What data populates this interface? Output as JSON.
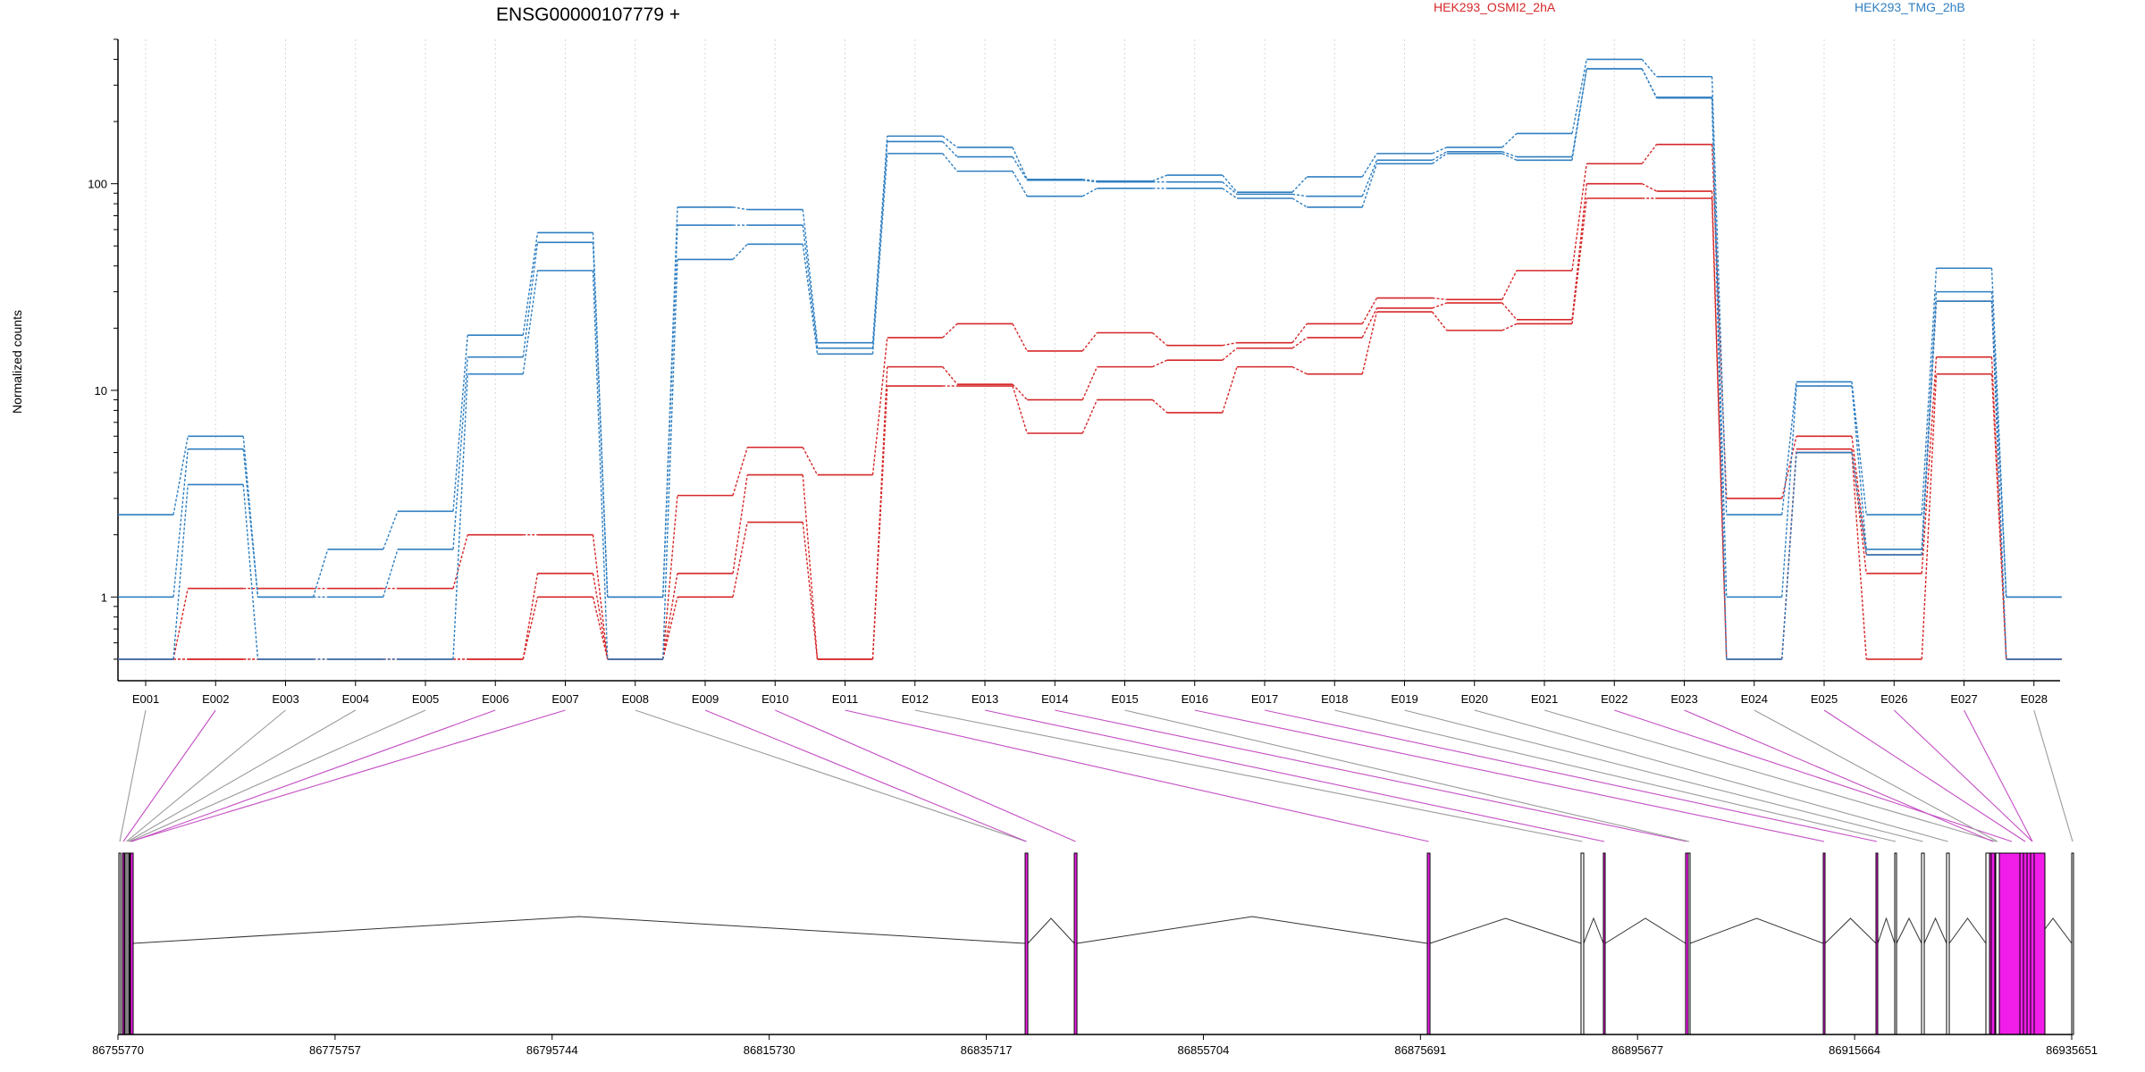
{
  "chart_data": {
    "type": "line",
    "title": "ENSG00000107779 +",
    "ylabel": "Normalized counts",
    "y_scale": "log",
    "ylim": [
      0.48,
      500
    ],
    "y_ticks": [
      1,
      10,
      100
    ],
    "y_tick_labels": [
      "1",
      "10",
      "100"
    ],
    "categories": [
      "E001",
      "E002",
      "E003",
      "E004",
      "E005",
      "E006",
      "E007",
      "E008",
      "E009",
      "E010",
      "E011",
      "E012",
      "E013",
      "E014",
      "E015",
      "E016",
      "E017",
      "E018",
      "E019",
      "E020",
      "E021",
      "E022",
      "E023",
      "E024",
      "E025",
      "E026",
      "E027",
      "E028"
    ],
    "grid": "vertical dotted at each exon",
    "legend": [
      {
        "name": "HEK293_OSMI2_2hA",
        "color": "#d62728"
      },
      {
        "name": "HEK293_TMG_2hB",
        "color": "#2f7fc1"
      }
    ],
    "series": [
      {
        "group": "HEK293_OSMI2_2hA",
        "color": "#d62728",
        "values": [
          0.5,
          0.5,
          0.5,
          0.5,
          0.5,
          0.5,
          1.0,
          0.5,
          1.0,
          2.3,
          0.5,
          10.5,
          10.5,
          6.2,
          9.0,
          7.8,
          13.0,
          12.0,
          24.0,
          19.5,
          21.0,
          85,
          85,
          0.5,
          5.0,
          0.5,
          12.0,
          0.5
        ]
      },
      {
        "group": "HEK293_OSMI2_2hA",
        "color": "#d62728",
        "values": [
          0.5,
          0.5,
          0.5,
          0.5,
          0.5,
          0.5,
          1.3,
          0.5,
          1.3,
          3.9,
          0.5,
          13.0,
          10.7,
          9.0,
          13.0,
          14.0,
          16.0,
          18.0,
          25.0,
          26.5,
          22.0,
          100,
          92,
          0.5,
          5.2,
          1.3,
          14.5,
          0.5
        ]
      },
      {
        "group": "HEK293_OSMI2_2hA",
        "color": "#d62728",
        "values": [
          0.5,
          1.1,
          1.1,
          1.1,
          1.1,
          2.0,
          2.0,
          0.5,
          3.1,
          5.3,
          3.9,
          18.0,
          21.0,
          15.5,
          19.0,
          16.5,
          17.0,
          21.0,
          28.0,
          27.5,
          38.0,
          125,
          155,
          3.0,
          6.0,
          1.6,
          27.0,
          0.5
        ]
      },
      {
        "group": "HEK293_TMG_2hB",
        "color": "#2f7fc1",
        "values": [
          0.5,
          3.5,
          0.5,
          0.5,
          0.5,
          12.0,
          38.0,
          0.5,
          43.0,
          51.0,
          15.0,
          140,
          115,
          87,
          95,
          95,
          85,
          77,
          125,
          140,
          130,
          360,
          260,
          0.5,
          5.0,
          1.6,
          27.0,
          0.5
        ]
      },
      {
        "group": "HEK293_TMG_2hB",
        "color": "#2f7fc1",
        "values": [
          1.0,
          5.2,
          1.0,
          1.0,
          1.7,
          14.5,
          52.0,
          1.0,
          63.0,
          63.0,
          16.0,
          160,
          135,
          104,
          102,
          102,
          89,
          87,
          130,
          143,
          135,
          360,
          262,
          1.0,
          10.5,
          1.7,
          30.0,
          1.0
        ]
      },
      {
        "group": "HEK293_TMG_2hB",
        "color": "#2f7fc1",
        "values": [
          2.5,
          6.0,
          1.0,
          1.7,
          2.6,
          18.5,
          58.0,
          1.0,
          77.0,
          75.0,
          17.0,
          170,
          150,
          105,
          103,
          110,
          91,
          108,
          140,
          150,
          175,
          400,
          330,
          2.5,
          11.0,
          2.5,
          39.0,
          1.0
        ]
      }
    ],
    "genomic_axis": {
      "tick_labels": [
        "86755770",
        "86775757",
        "86795744",
        "86815730",
        "86835717",
        "86855704",
        "86875691",
        "86895677",
        "86915664",
        "86935651"
      ]
    },
    "gene_model": {
      "exons_highlighted": [
        "E002",
        "E006",
        "E007",
        "E009",
        "E010",
        "E011",
        "E013",
        "E014",
        "E016",
        "E017",
        "E022",
        "E023",
        "E025",
        "E026",
        "E027"
      ]
    }
  }
}
